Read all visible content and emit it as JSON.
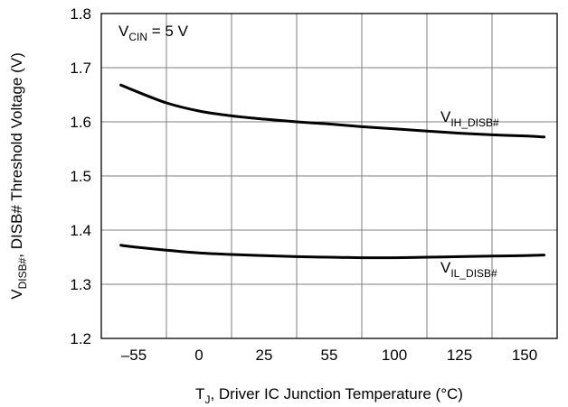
{
  "chart_data": {
    "type": "line",
    "title": "",
    "xlabel": {
      "main": "T",
      "sub": "J",
      "rest": ", Driver IC Junction Temperature (°C)"
    },
    "ylabel": {
      "main": "V",
      "sub": "DISB#",
      "rest": ", DISB# Threshold Voltage (V)"
    },
    "x_tick_labels": [
      "–55",
      "0",
      "25",
      "55",
      "100",
      "125",
      "150"
    ],
    "ylim": [
      1.2,
      1.8
    ],
    "y_ticks": [
      1.2,
      1.3,
      1.4,
      1.5,
      1.6,
      1.7,
      1.8
    ],
    "y_tick_labels": [
      "1.2",
      "1.3",
      "1.4",
      "1.5",
      "1.6",
      "1.7",
      "1.8"
    ],
    "grid": true,
    "annotation": {
      "main": "V",
      "sub": "CIN",
      "rest": " = 5 V"
    },
    "series": [
      {
        "name": "V_IH_DISB#",
        "label": {
          "main": "V",
          "sub": "IH_DISB#"
        },
        "x_index": [
          -0.2,
          0.0,
          0.5,
          1.0,
          1.5,
          2.0,
          2.5,
          3.0,
          3.5,
          4.0,
          4.5,
          5.0,
          5.5,
          6.0,
          6.3
        ],
        "values": [
          1.668,
          1.658,
          1.635,
          1.62,
          1.611,
          1.605,
          1.6,
          1.596,
          1.591,
          1.587,
          1.583,
          1.579,
          1.576,
          1.574,
          1.572
        ]
      },
      {
        "name": "V_IL_DISB#",
        "label": {
          "main": "V",
          "sub": "IL_DISB#"
        },
        "x_index": [
          -0.2,
          0.0,
          0.5,
          1.0,
          1.5,
          2.0,
          2.5,
          3.0,
          3.5,
          4.0,
          4.5,
          5.0,
          5.5,
          6.0,
          6.3
        ],
        "values": [
          1.372,
          1.369,
          1.363,
          1.358,
          1.355,
          1.353,
          1.351,
          1.35,
          1.349,
          1.349,
          1.35,
          1.351,
          1.352,
          1.353,
          1.354
        ]
      }
    ]
  }
}
